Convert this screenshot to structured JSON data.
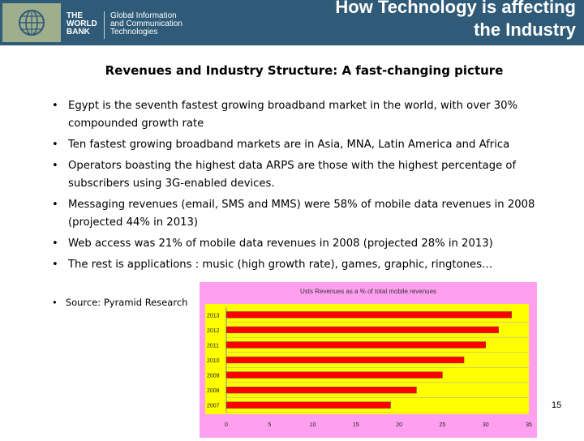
{
  "header": {
    "org_name": [
      "THE",
      "WORLD",
      "BANK"
    ],
    "unit_name": [
      "Global Information",
      "and Communication",
      "Technologies"
    ],
    "title_line1": "How Technology is affecting",
    "title_line2": "the Industry"
  },
  "slide": {
    "subtitle": "Revenues and Industry Structure: A fast-changing picture",
    "bullets": [
      "Egypt is the seventh fastest growing broadband market in the world, with over 30% compounded growth rate",
      "Ten fastest growing broadband markets are in Asia, MNA, Latin America and Africa",
      "Operators boasting the highest data ARPS are those with the highest percentage of subscribers using 3G-enabled devices.",
      "Messaging revenues (email, SMS and MMS) were 58% of mobile data revenues in 2008 (projected 44% in 2013)",
      "Web access was 21% of mobile data revenues in 2008 (projected 28% in 2013)",
      "The rest is applications : music (high growth rate), games, graphic, ringtones…"
    ],
    "source": "Source: Pyramid Research",
    "page_number": "15"
  },
  "colors": {
    "header_bg": "#2f5b78",
    "chart_outer_bg": "#ff9ff0",
    "chart_plot_bg": "#ffff00",
    "bar": "#ff0000"
  },
  "chart_data": {
    "type": "bar",
    "orientation": "horizontal",
    "title": "Usts Revenues as a % of total mobile revenues",
    "categories": [
      "2013",
      "2012",
      "2011",
      "2010",
      "2009",
      "2008",
      "2007"
    ],
    "values": [
      33,
      31.5,
      30,
      27.5,
      25,
      22,
      19
    ],
    "xlim": [
      0,
      35
    ],
    "xticks": [
      "0",
      "5",
      "10",
      "15",
      "20",
      "25",
      "30",
      "35"
    ],
    "grid": true
  }
}
